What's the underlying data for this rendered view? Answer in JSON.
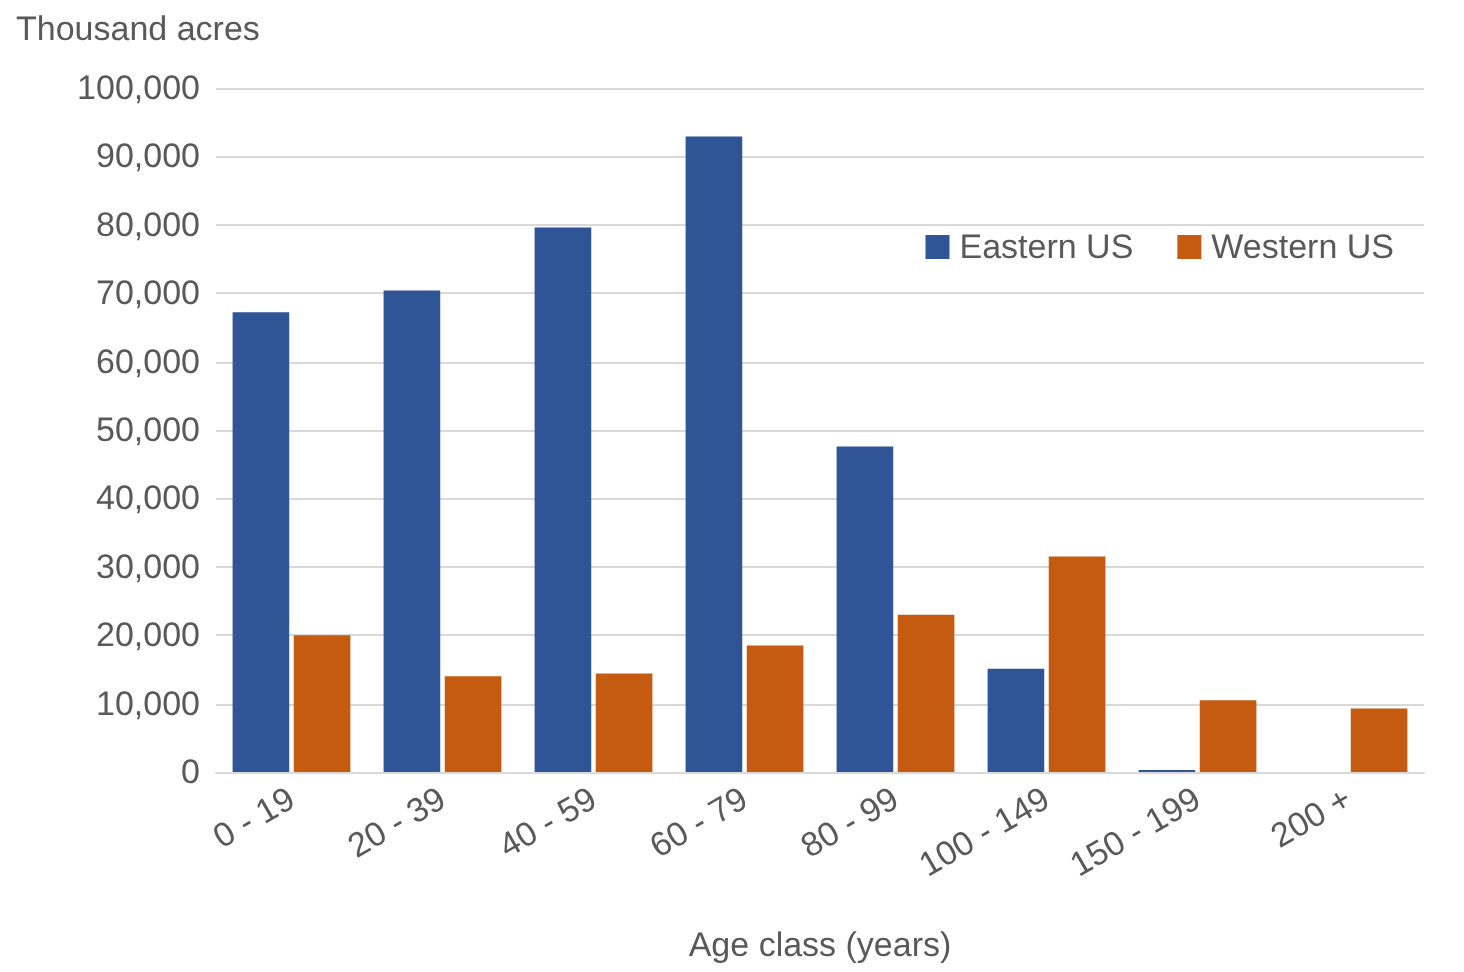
{
  "chart_data": {
    "type": "bar",
    "ylabel": "Thousand acres",
    "xlabel": "Age class (years)",
    "categories": [
      "0 - 19",
      "20 - 39",
      "40 - 59",
      "60 - 79",
      "80 - 99",
      "100 - 149",
      "150 - 199",
      "200 +"
    ],
    "series": [
      {
        "name": "Eastern US",
        "color": "#2f5597",
        "values": [
          67200,
          70400,
          79600,
          92900,
          47600,
          15100,
          300,
          0
        ]
      },
      {
        "name": "Western US",
        "color": "#c55a11",
        "values": [
          20000,
          14000,
          14400,
          18500,
          23000,
          31500,
          10500,
          9300
        ]
      }
    ],
    "ylim": [
      0,
      100000
    ],
    "yticks": [
      {
        "value": 0,
        "label": "0"
      },
      {
        "value": 10000,
        "label": "10,000"
      },
      {
        "value": 20000,
        "label": "20,000"
      },
      {
        "value": 30000,
        "label": "30,000"
      },
      {
        "value": 40000,
        "label": "40,000"
      },
      {
        "value": 50000,
        "label": "50,000"
      },
      {
        "value": 60000,
        "label": "60,000"
      },
      {
        "value": 70000,
        "label": "70,000"
      },
      {
        "value": 80000,
        "label": "80,000"
      },
      {
        "value": 90000,
        "label": "90,000"
      },
      {
        "value": 100000,
        "label": "100,000"
      }
    ],
    "grid": "y",
    "legend": "top right"
  }
}
